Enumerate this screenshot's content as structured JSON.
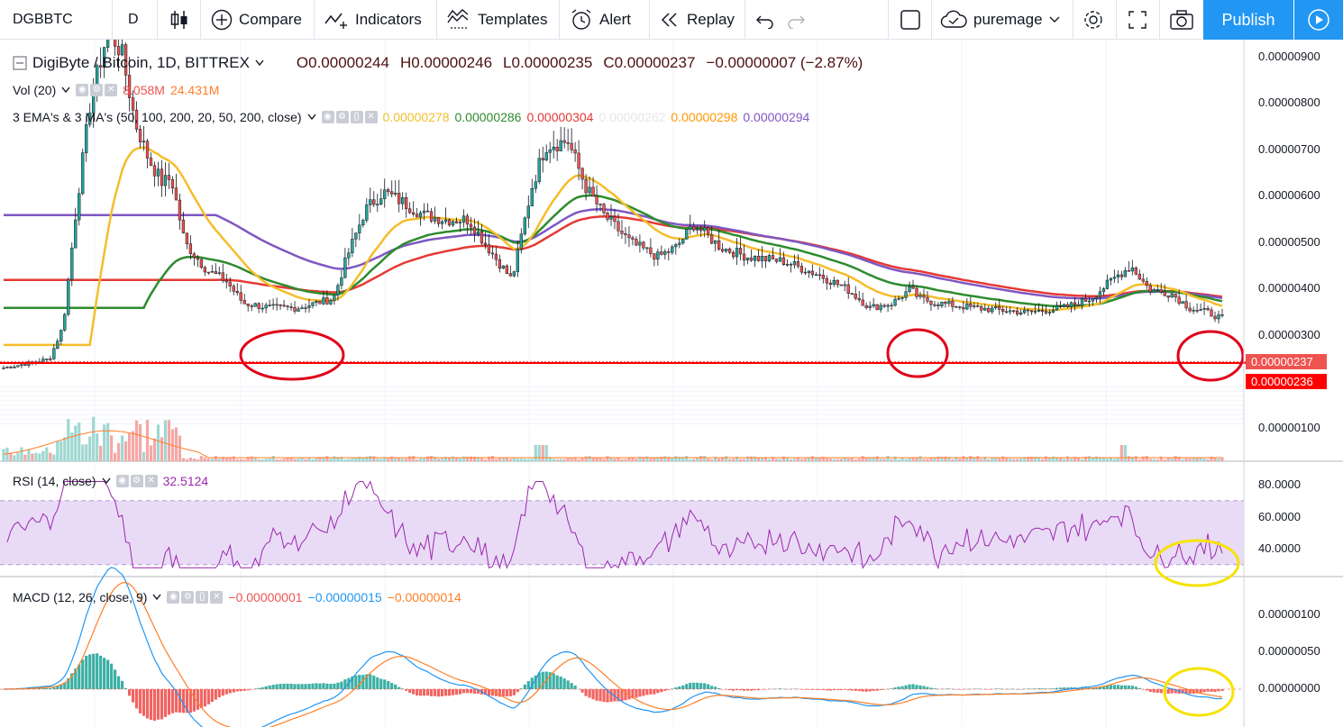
{
  "toolbar": {
    "symbol": "DGBBTC",
    "interval": "D",
    "compare_label": "Compare",
    "indicators_label": "Indicators",
    "templates_label": "Templates",
    "alert_label": "Alert",
    "replay_label": "Replay",
    "username": "puremage",
    "publish_label": "Publish"
  },
  "main_legend": {
    "title": "DigiByte / Bitcoin, 1D, BITTREX",
    "open": "O0.00000244",
    "high": "H0.00000246",
    "low": "L0.00000235",
    "close": "C0.00000237",
    "change": "−0.00000007 (−2.87%)"
  },
  "vol_legend": {
    "label": "Vol (20)",
    "v1": "8.058M",
    "v2": "24.431M"
  },
  "ema_legend": {
    "label": "3 EMA's & 3 MA's (50, 100, 200, 20, 50, 200, close)",
    "values": [
      {
        "text": "0.00000278",
        "color": "#f5bd2b"
      },
      {
        "text": "0.00000286",
        "color": "#2e8b2e"
      },
      {
        "text": "0.00000304",
        "color": "#e53935"
      },
      {
        "text": "0.00000262",
        "color": "#ffffff"
      },
      {
        "text": "0.00000298",
        "color": "#ff9800"
      },
      {
        "text": "0.00000294",
        "color": "#7e57c2"
      }
    ]
  },
  "rsi_legend": {
    "label": "RSI (14, close)",
    "value": "32.5124"
  },
  "macd_legend": {
    "label": "MACD (12, 26, close, 9)",
    "v1": "−0.00000001",
    "v2": "−0.00000015",
    "v3": "−0.00000014"
  },
  "price_axis": [
    "0.00000900",
    "0.00000800",
    "0.00000700",
    "0.00000600",
    "0.00000500",
    "0.00000400",
    "0.00000300",
    "0.00000100"
  ],
  "price_tags": [
    {
      "text": "0.00000237",
      "color": "#ef5350"
    },
    {
      "text": "0.00000236",
      "color": "#ff0000"
    }
  ],
  "rsi_axis": [
    "80.0000",
    "60.0000",
    "40.0000"
  ],
  "macd_axis": [
    "0.00000100",
    "0.00000050",
    "0.00000000"
  ],
  "colors": {
    "up": "#26a69a",
    "down": "#ef5350",
    "ema_yellow": "#f5bd2b",
    "ema_green": "#2e8b2e",
    "ema_red": "#e53935",
    "ma_purple": "#7e57c2",
    "rsi": "#9c27b0",
    "macd_blue": "#2196f3",
    "macd_orange": "#ff7f27",
    "annotation_red": "#e0001a",
    "annotation_yellow": "#f6e300"
  },
  "chart_data": {
    "type": "candlestick",
    "series": [
      {
        "name": "DigiByte / Bitcoin, 1D, BITTREX",
        "values": [
          1.3,
          1.4,
          1.5,
          2.2,
          4.8,
          7.0,
          8.6,
          8.1,
          6.6,
          5.8,
          5.3,
          5.4,
          4.0,
          3.4,
          3.2,
          2.7,
          2.6,
          2.6,
          2.7,
          2.8,
          3.7,
          4.7,
          5.1,
          4.9,
          4.6,
          4.5,
          4.5,
          3.8,
          3.2,
          5.2,
          6.1,
          6.2,
          5.2,
          4.6,
          4.0,
          3.7,
          3.9,
          4.4,
          3.9,
          3.7,
          3.6,
          3.3,
          3.0,
          2.6,
          2.7,
          3.0,
          2.8,
          2.7,
          2.6,
          2.5,
          2.6,
          2.8,
          3.3,
          3.5,
          3.0,
          2.9,
          2.6,
          2.5,
          2.37
        ]
      }
    ]
  }
}
